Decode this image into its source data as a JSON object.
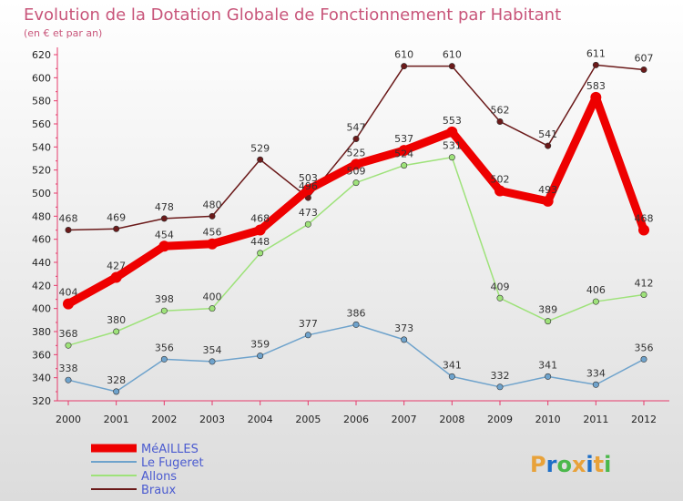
{
  "chart_data": {
    "type": "line",
    "title": "Evolution de la Dotation Globale de Fonctionnement par Habitant",
    "subtitle": "(en € et par an)",
    "xlabel": "",
    "ylabel": "",
    "ylim": [
      320,
      620
    ],
    "yticks": [
      320,
      340,
      360,
      380,
      400,
      420,
      440,
      460,
      480,
      500,
      520,
      540,
      560,
      580,
      600,
      620
    ],
    "x": [
      "2000",
      "2001",
      "2002",
      "2003",
      "2004",
      "2005",
      "2006",
      "2007",
      "2008",
      "2009",
      "2010",
      "2011",
      "2012"
    ],
    "grid": false,
    "legend_position": "bottom-left",
    "series": [
      {
        "name": "Braux",
        "color": "#6b1a1a",
        "values": [
          468,
          469,
          478,
          480,
          529,
          496,
          547,
          610,
          610,
          562,
          541,
          611,
          607
        ],
        "labels": [
          "468",
          "469",
          "478",
          "480",
          "529",
          "496",
          "547",
          "610",
          "610",
          "562",
          "541",
          "611",
          "607"
        ]
      },
      {
        "name": "Allons",
        "color": "#9ee27a",
        "values": [
          368,
          380,
          398,
          400,
          448,
          473,
          509,
          524,
          531,
          409,
          389,
          406,
          412
        ],
        "labels": [
          "368",
          "380",
          "398",
          "400",
          "448",
          "473",
          "509",
          "524",
          "531",
          "409",
          "389",
          "406",
          "412"
        ]
      },
      {
        "name": "Le Fugeret",
        "color": "#6fa3cc",
        "values": [
          338,
          328,
          356,
          354,
          359,
          377,
          386,
          373,
          341,
          332,
          341,
          334,
          356
        ],
        "labels": [
          "338",
          "328",
          "356",
          "354",
          "359",
          "377",
          "386",
          "373",
          "341",
          "332",
          "341",
          "334",
          "356"
        ]
      },
      {
        "name": "MéAILLES",
        "color": "#ee0000",
        "values": [
          404,
          427,
          454,
          456,
          468,
          503,
          525,
          537,
          553,
          502,
          493,
          583,
          468
        ],
        "labels": [
          "404",
          "427",
          "454",
          "456",
          "468",
          "503",
          "525",
          "537",
          "553",
          "502",
          "493",
          "583",
          "468"
        ]
      }
    ],
    "legend": [
      "MéAILLES",
      "Le Fugeret",
      "Allons",
      "Braux"
    ]
  },
  "logo": {
    "text": "Proxiti"
  }
}
